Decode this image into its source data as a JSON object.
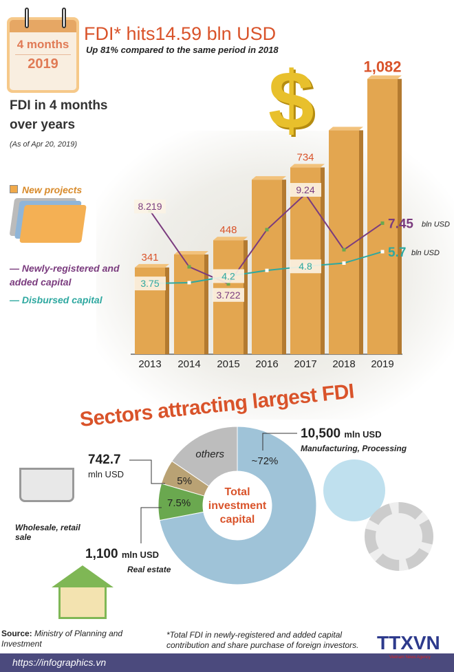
{
  "header": {
    "calendar_period": "4 months",
    "calendar_year": "2019",
    "title": "FDI* hits14.59 bln USD",
    "subtitle": "Up 81% compared to the same period in  2018",
    "section_title": "FDI in 4 months over years",
    "as_of": "(As of Apr 20, 2019)"
  },
  "legend": {
    "new_projects": "New projects",
    "registered": "Newly-registered and added capital",
    "disbursed": "Disbursed capital"
  },
  "colors": {
    "accent": "#d9532a",
    "bar": "#e0a050",
    "purple": "#7a3b7e",
    "teal": "#2ea8a0"
  },
  "chart_data": [
    {
      "type": "bar+line",
      "categories": [
        "2013",
        "2014",
        "2015",
        "2016",
        "2017",
        "2018",
        "2019"
      ],
      "series": [
        {
          "name": "New projects",
          "type": "bar",
          "values": [
            341,
            392,
            448,
            686,
            734,
            880,
            1082
          ],
          "labels": [
            "341",
            "",
            "448",
            "",
            "734",
            "",
            "1,082"
          ]
        },
        {
          "name": "Newly-registered and added capital",
          "type": "line",
          "unit": "bln USD",
          "values": [
            8.219,
            4.77,
            3.722,
            7.05,
            9.24,
            5.82,
            7.45
          ],
          "labels": [
            "8.219",
            "",
            "3.722",
            "",
            "9.24",
            "",
            "7.45"
          ]
        },
        {
          "name": "Disbursed capital",
          "type": "line",
          "unit": "bln USD",
          "values": [
            3.75,
            3.8,
            4.2,
            4.55,
            4.8,
            5.0,
            5.7
          ],
          "labels": [
            "3.75",
            "",
            "4.2",
            "",
            "4.8",
            "",
            "5.7"
          ]
        }
      ],
      "unit_label": "bln USD"
    },
    {
      "type": "pie",
      "title": "Sectors attracting largest FDI",
      "center_label": "Total investment capital",
      "slices": [
        {
          "name": "Manufacturing, Processing",
          "pct_label": "~72%",
          "value_pct": 72,
          "amount": "10,500",
          "color": "#9fc3d8"
        },
        {
          "name": "Real estate",
          "pct_label": "7.5%",
          "value_pct": 7.5,
          "amount": "1,100",
          "color": "#6aa84f"
        },
        {
          "name": "Wholesale, retail sale",
          "pct_label": "5%",
          "value_pct": 5,
          "amount": "742.7",
          "color": "#b9a274"
        },
        {
          "name": "others",
          "pct_label": "",
          "value_pct": 15.5,
          "color": "#bdbdbd"
        }
      ],
      "unit": "mln USD"
    }
  ],
  "footer": {
    "source_label": "Source:",
    "source": "Ministry of Planning and Investment",
    "note": "*Total FDI in newly-registered and added capital contribution and share purchase of foreign investors.",
    "url": "https://infographics.vn",
    "logo": "TTXVN",
    "logo_sub": "Vietnam News Agency"
  }
}
